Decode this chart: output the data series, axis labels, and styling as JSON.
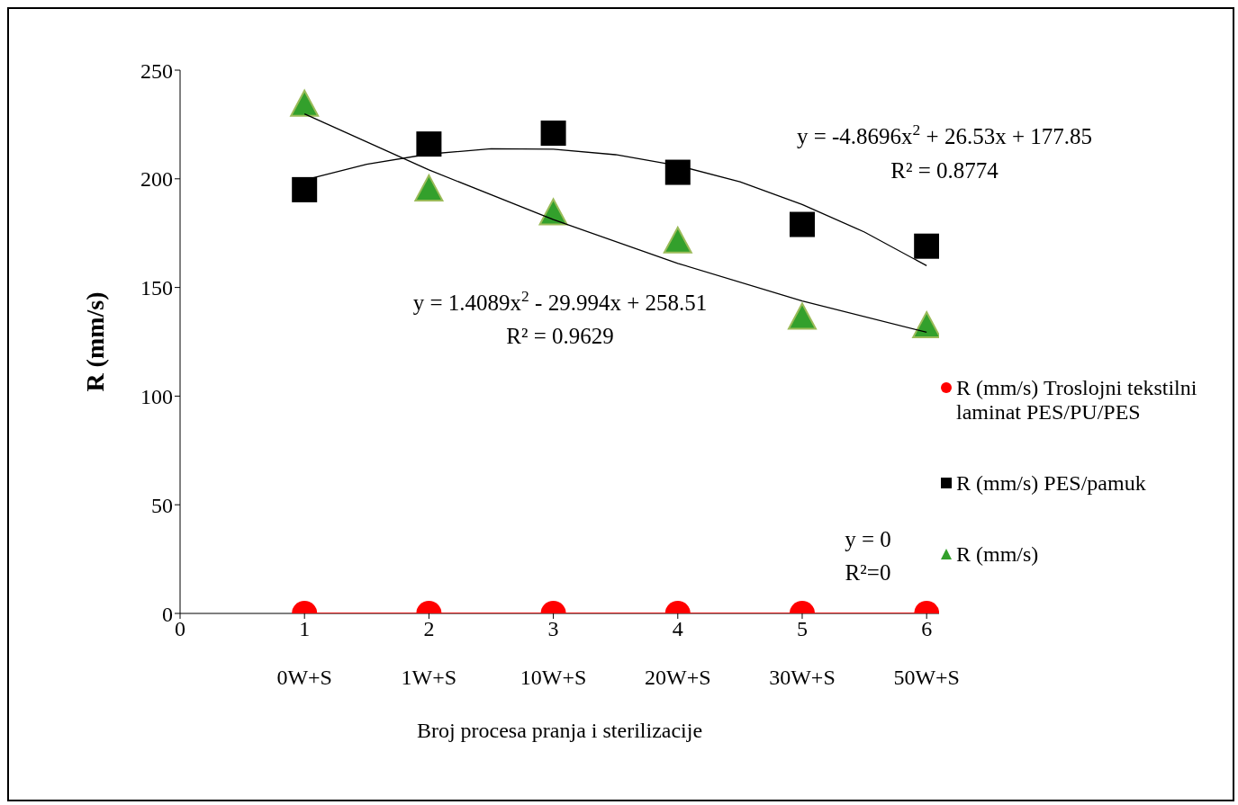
{
  "chart_data": {
    "type": "scatter",
    "xlabel": "Broj procesa pranja i sterilizacije",
    "ylabel": "R (mm/s)",
    "x": [
      1,
      2,
      3,
      4,
      5,
      6
    ],
    "xlim": [
      0,
      6.1
    ],
    "xticks": [
      0,
      1,
      2,
      3,
      4,
      5,
      6
    ],
    "ylim": [
      0,
      250
    ],
    "yticks": [
      0,
      50,
      100,
      150,
      200,
      250
    ],
    "legend": "right",
    "series": [
      {
        "name": "R (mm/s) Troslojni tekstilni laminat PES/PU/PES",
        "color": "#ff0000",
        "marker": "circle",
        "values": [
          0,
          0,
          0,
          0,
          0,
          0
        ]
      },
      {
        "name": "R (mm/s) PES/pamuk",
        "color": "#000000",
        "marker": "square",
        "values": [
          195,
          216,
          221,
          203,
          179,
          169
        ]
      },
      {
        "name": "R (mm/s)",
        "color": "#33a02c",
        "marker": "triangle",
        "values": [
          234,
          195,
          184,
          171,
          136,
          132
        ]
      },
      {
        "type": "line",
        "color": "#ff0000",
        "x": [
          1,
          6
        ],
        "values": [
          0,
          0
        ]
      },
      {
        "type": "line",
        "color": "#000000",
        "x": [
          1,
          1.5,
          2,
          2.5,
          3,
          3.5,
          4,
          4.5,
          5,
          5.5,
          6
        ],
        "values": [
          199.5,
          206.7,
          211.4,
          213.8,
          213.6,
          211.1,
          206.1,
          198.6,
          188.2,
          175.5,
          160
        ]
      },
      {
        "type": "line",
        "color": "#000000",
        "x": [
          1,
          2,
          3,
          4,
          5,
          6
        ],
        "values": [
          229.9,
          204.1,
          181.2,
          161.1,
          143.8,
          129.4
        ]
      }
    ],
    "annotations": [
      "0W+S",
      "1W+S",
      "10W+S",
      "20W+S",
      "30W+S",
      "50W+S",
      "y = -4.8696x$^{2}$ + 26.53x + 177.85",
      "R² = 0.8774",
      "y = 1.4089x$^{2}$ - 29.994x + 258.51",
      "R² = 0.9629",
      "y = 0",
      "R²=0"
    ]
  }
}
